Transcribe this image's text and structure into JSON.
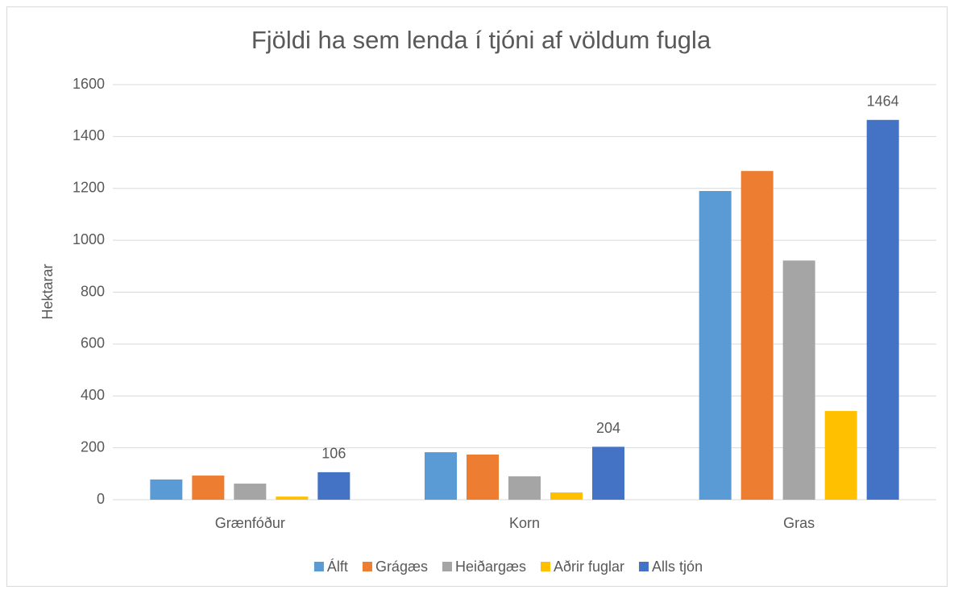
{
  "chart_data": {
    "type": "bar",
    "title": "Fjöldi ha sem lenda í tjóni af völdum fugla",
    "y_label": "Hektarar",
    "categories": [
      "Grænfóður",
      "Korn",
      "Gras"
    ],
    "series": [
      {
        "name": "Álft",
        "color": "#5b9bd5",
        "values": [
          78,
          183,
          1190
        ]
      },
      {
        "name": "Grágæs",
        "color": "#ed7d31",
        "values": [
          93,
          174,
          1267
        ]
      },
      {
        "name": "Heiðargæs",
        "color": "#a5a5a5",
        "values": [
          62,
          90,
          922
        ]
      },
      {
        "name": "Aðrir fuglar",
        "color": "#ffc000",
        "values": [
          12,
          28,
          342
        ]
      },
      {
        "name": "Alls tjón",
        "color": "#4472c4",
        "values": [
          106,
          204,
          1464
        ],
        "data_labels": true
      }
    ],
    "ylim": [
      0,
      1600
    ],
    "yticks": [
      0,
      200,
      400,
      600,
      800,
      1000,
      1200,
      1400,
      1600
    ],
    "grid": true,
    "legend": "bottom"
  }
}
